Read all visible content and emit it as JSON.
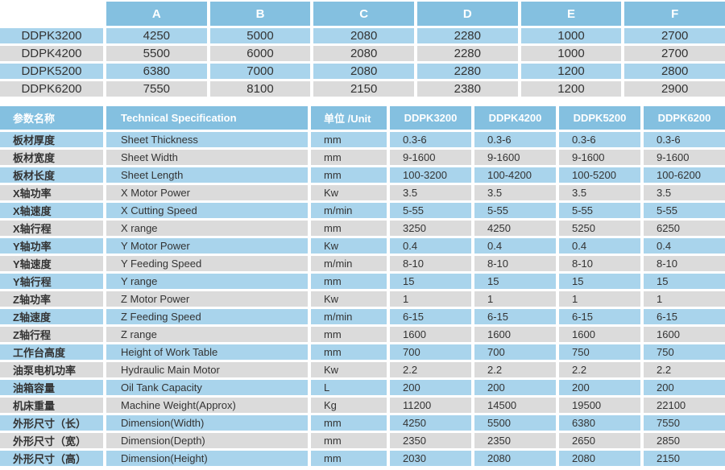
{
  "colors": {
    "header_bg": "#84c0e0",
    "header_text": "#ffffff",
    "row_blue": "#a9d4ec",
    "row_gray": "#dbdbdb",
    "text": "#333333",
    "background": "#ffffff"
  },
  "dimensions_table": {
    "columns": [
      "A",
      "B",
      "C",
      "D",
      "E",
      "F"
    ],
    "rows": [
      {
        "model": "DDPK3200",
        "values": [
          "4250",
          "5000",
          "2080",
          "2280",
          "1000",
          "2700"
        ]
      },
      {
        "model": "DDPK4200",
        "values": [
          "5500",
          "6000",
          "2080",
          "2280",
          "1000",
          "2700"
        ]
      },
      {
        "model": "DDPK5200",
        "values": [
          "6380",
          "7000",
          "2080",
          "2280",
          "1200",
          "2800"
        ]
      },
      {
        "model": "DDPK6200",
        "values": [
          "7550",
          "8100",
          "2150",
          "2380",
          "1200",
          "2900"
        ]
      }
    ]
  },
  "spec_table": {
    "headers": {
      "param_cn": "参数名称",
      "spec_en": "Technical Specification",
      "unit": "单位 /Unit",
      "models": [
        "DDPK3200",
        "DDPK4200",
        "DDPK5200",
        "DDPK6200"
      ]
    },
    "rows": [
      {
        "param_cn": "板材厚度",
        "spec_en": "Sheet Thickness",
        "unit": "mm",
        "values": [
          "0.3-6",
          "0.3-6",
          "0.3-6",
          "0.3-6"
        ]
      },
      {
        "param_cn": "板材宽度",
        "spec_en": "Sheet Width",
        "unit": "mm",
        "values": [
          "9-1600",
          "9-1600",
          "9-1600",
          "9-1600"
        ]
      },
      {
        "param_cn": "板材长度",
        "spec_en": "Sheet Length",
        "unit": "mm",
        "values": [
          "100-3200",
          "100-4200",
          "100-5200",
          "100-6200"
        ]
      },
      {
        "param_cn": "X轴功率",
        "spec_en": "X Motor Power",
        "unit": "Kw",
        "values": [
          "3.5",
          "3.5",
          "3.5",
          "3.5"
        ]
      },
      {
        "param_cn": "X轴速度",
        "spec_en": "X Cutting Speed",
        "unit": "m/min",
        "values": [
          "5-55",
          "5-55",
          "5-55",
          "5-55"
        ]
      },
      {
        "param_cn": "X轴行程",
        "spec_en": "X range",
        "unit": "mm",
        "values": [
          "3250",
          "4250",
          "5250",
          "6250"
        ]
      },
      {
        "param_cn": "Y轴功率",
        "spec_en": "Y Motor Power",
        "unit": "Kw",
        "values": [
          "0.4",
          "0.4",
          "0.4",
          "0.4"
        ]
      },
      {
        "param_cn": "Y轴速度",
        "spec_en": "Y Feeding Speed",
        "unit": "m/min",
        "values": [
          "8-10",
          "8-10",
          "8-10",
          "8-10"
        ]
      },
      {
        "param_cn": "Y轴行程",
        "spec_en": "Y range",
        "unit": "mm",
        "values": [
          "15",
          "15",
          "15",
          "15"
        ]
      },
      {
        "param_cn": "Z轴功率",
        "spec_en": "Z Motor Power",
        "unit": "Kw",
        "values": [
          "1",
          "1",
          "1",
          "1"
        ]
      },
      {
        "param_cn": "Z轴速度",
        "spec_en": "Z Feeding Speed",
        "unit": "m/min",
        "values": [
          "6-15",
          "6-15",
          "6-15",
          "6-15"
        ]
      },
      {
        "param_cn": "Z轴行程",
        "spec_en": "Z range",
        "unit": "mm",
        "values": [
          "1600",
          "1600",
          "1600",
          "1600"
        ]
      },
      {
        "param_cn": "工作台高度",
        "spec_en": "Height of Work Table",
        "unit": "mm",
        "values": [
          "700",
          "700",
          "750",
          "750"
        ]
      },
      {
        "param_cn": "油泵电机功率",
        "spec_en": "Hydraulic Main Motor",
        "unit": "Kw",
        "values": [
          "2.2",
          "2.2",
          "2.2",
          "2.2"
        ]
      },
      {
        "param_cn": "油箱容量",
        "spec_en": "Oil Tank Capacity",
        "unit": "L",
        "values": [
          "200",
          "200",
          "200",
          "200"
        ]
      },
      {
        "param_cn": "机床重量",
        "spec_en": "Machine Weight(Approx)",
        "unit": "Kg",
        "values": [
          "11200",
          "14500",
          "19500",
          "22100"
        ]
      },
      {
        "param_cn": "外形尺寸（长）",
        "spec_en": "Dimension(Width)",
        "unit": "mm",
        "values": [
          "4250",
          "5500",
          "6380",
          "7550"
        ]
      },
      {
        "param_cn": "外形尺寸（宽）",
        "spec_en": "Dimension(Depth)",
        "unit": "mm",
        "values": [
          "2350",
          "2350",
          "2650",
          "2850"
        ]
      },
      {
        "param_cn": "外形尺寸（高）",
        "spec_en": "Dimension(Height)",
        "unit": "mm",
        "values": [
          "2030",
          "2080",
          "2080",
          "2150"
        ]
      }
    ]
  }
}
